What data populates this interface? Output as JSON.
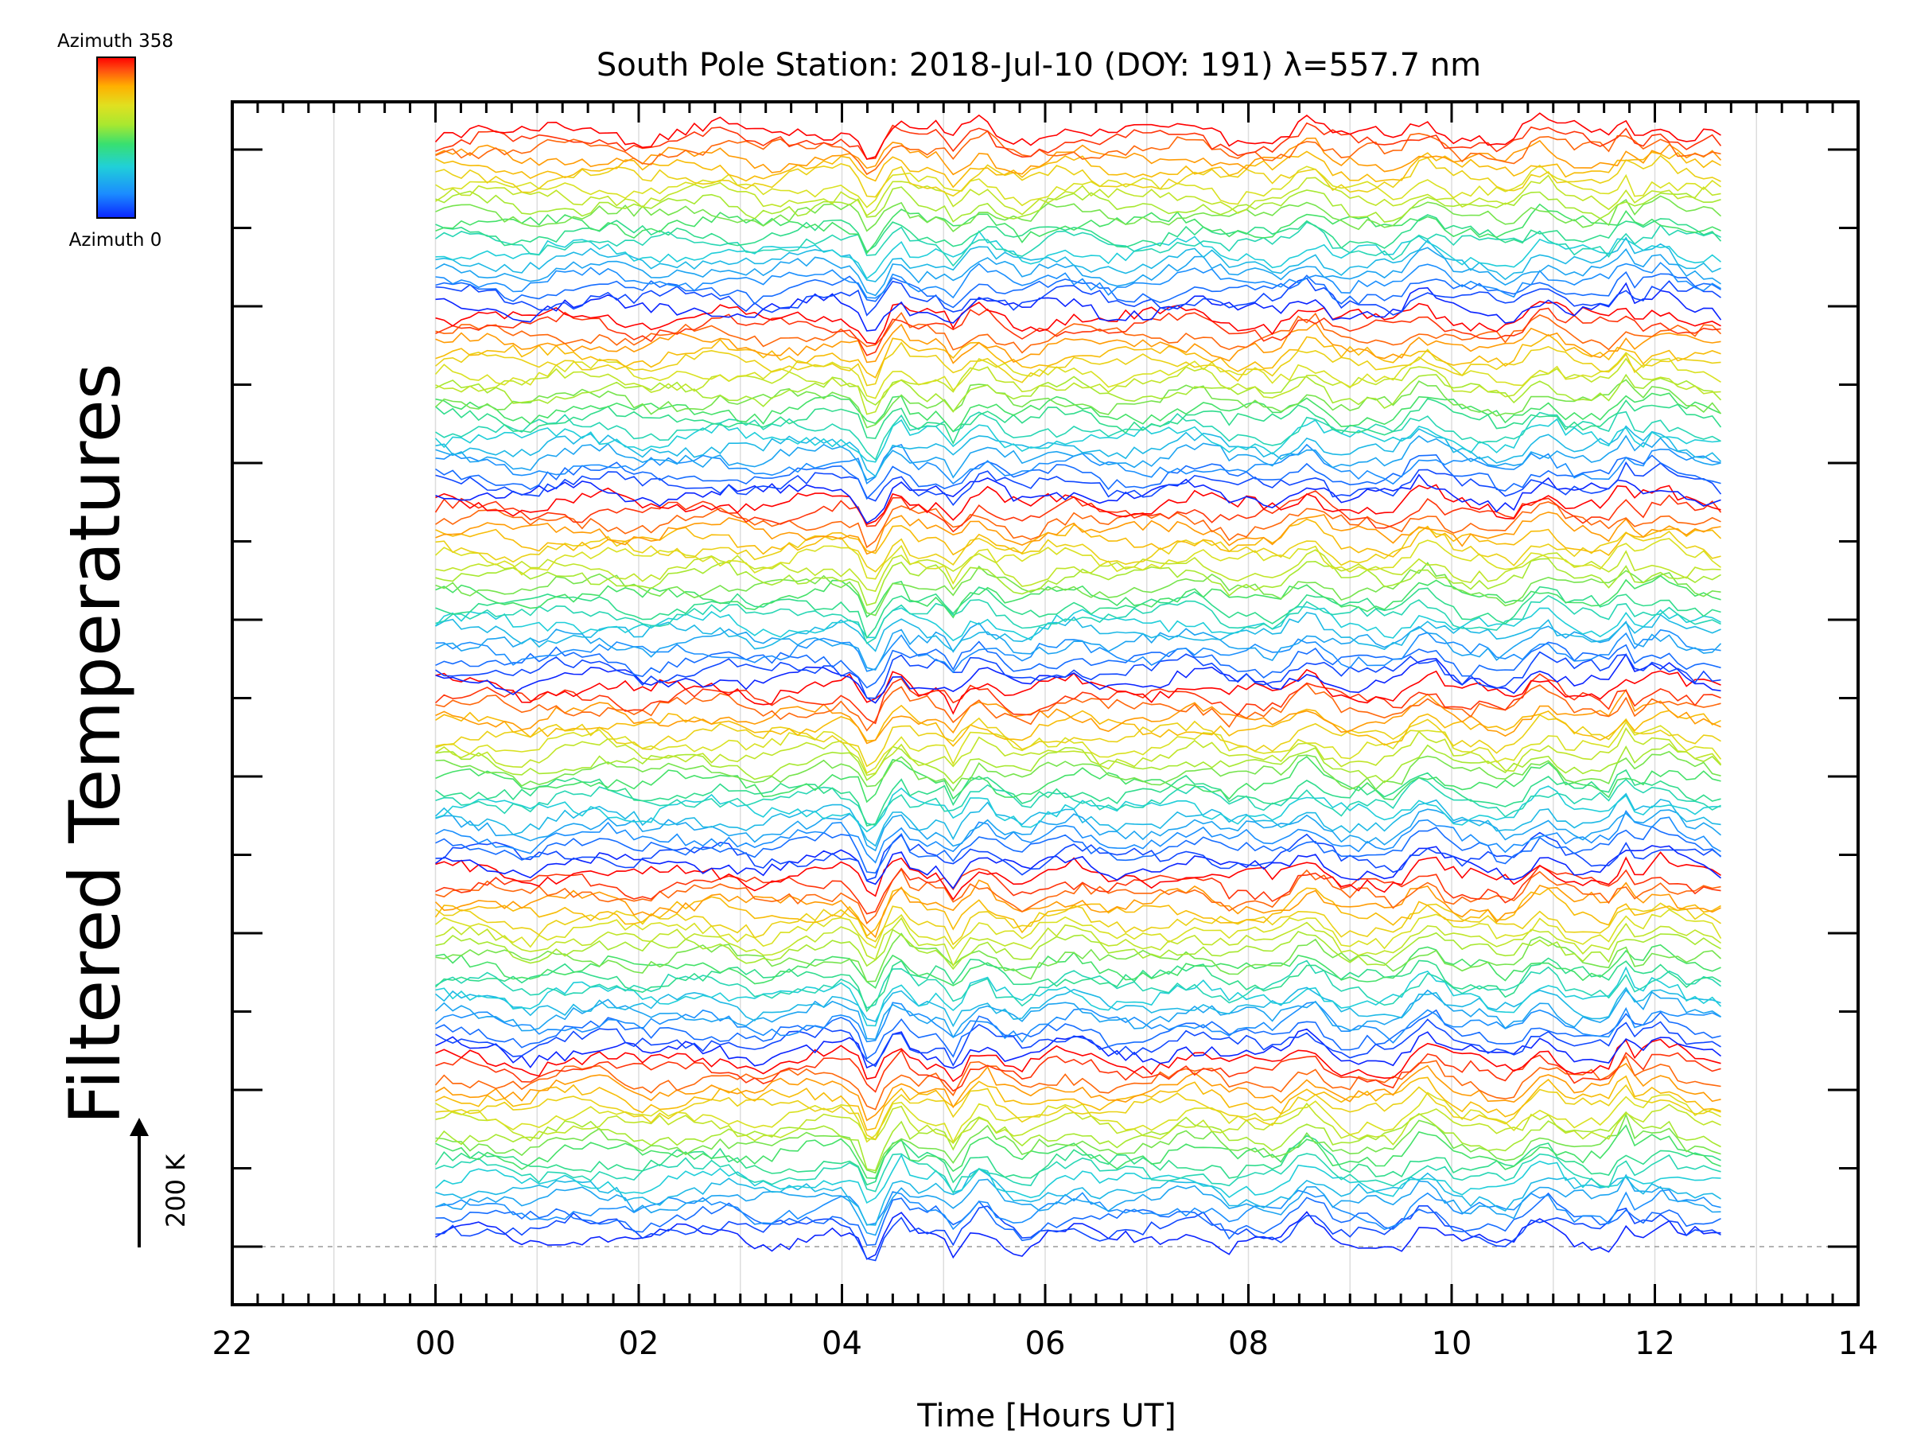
{
  "chart_data": {
    "type": "line",
    "title": "South Pole Station: 2018-Jul-10 (DOY: 191) λ=557.7 nm",
    "xlabel": "Time [Hours UT]",
    "ylabel": "Filtered Temperatures",
    "xlim": [
      -2,
      14
    ],
    "x_ticks": [
      "22",
      "00",
      "02",
      "04",
      "06",
      "08",
      "10",
      "12",
      "14"
    ],
    "x_data_range": [
      0.0,
      12.65
    ],
    "colorbar": {
      "top_label": "Azimuth 358",
      "bottom_label": "Azimuth 0",
      "colors": [
        "#0b24ff",
        "#1b8cff",
        "#20d0d8",
        "#38e070",
        "#a8e830",
        "#e0e020",
        "#ffb000",
        "#ff5010",
        "#ff0000"
      ]
    },
    "scale_bar": {
      "label": "200 K",
      "value_kelvin": 200
    },
    "series_count": 120,
    "series_groups": 6,
    "lines_per_group": 20,
    "grid": true,
    "notes": "Stacked filtered temperature time series, one line per azimuth, colored blue (azimuth 0) to red (azimuth 358); lines offset vertically in six groups."
  }
}
